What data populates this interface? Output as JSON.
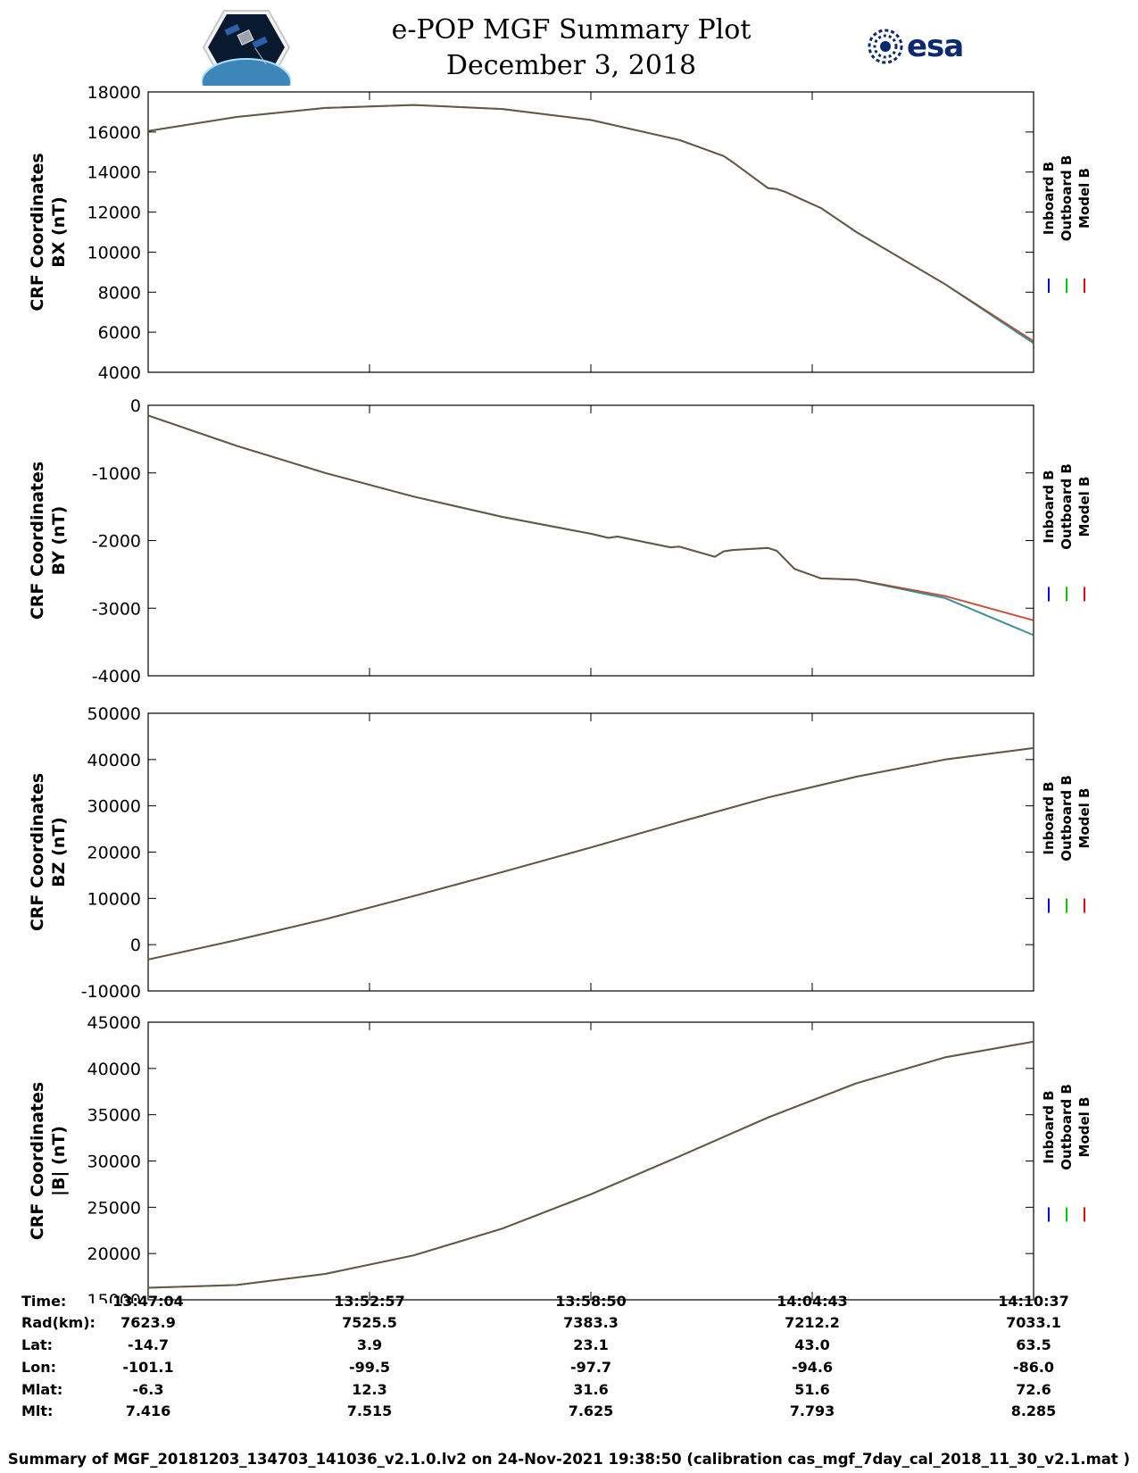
{
  "header": {
    "title_line1": "e-POP MGF Summary Plot",
    "title_line2": "December 3, 2018"
  },
  "chart_data": [
    {
      "type": "line",
      "ylabel_line1": "CRF Coordinates",
      "ylabel_line2": "BX (nT)",
      "ylim": [
        4000,
        18000
      ],
      "yticks": [
        4000,
        6000,
        8000,
        10000,
        12000,
        14000,
        16000,
        18000
      ],
      "x": [
        0,
        0.1,
        0.2,
        0.3,
        0.4,
        0.5,
        0.6,
        0.65,
        0.66,
        0.7,
        0.71,
        0.72,
        0.76,
        0.8,
        0.9,
        1.0
      ],
      "series": [
        {
          "name": "Inboard B",
          "color": "#0000ff",
          "values": [
            16050,
            16750,
            17200,
            17350,
            17150,
            16600,
            15600,
            14800,
            14500,
            13200,
            13150,
            13000,
            12200,
            11000,
            8400,
            5450
          ]
        },
        {
          "name": "Outboard B",
          "color": "#00cc00",
          "values": [
            16050,
            16750,
            17200,
            17350,
            17150,
            16600,
            15600,
            14800,
            14500,
            13200,
            13150,
            13000,
            12200,
            11000,
            8400,
            5450
          ]
        },
        {
          "name": "Model B",
          "color": "#ff0000",
          "values": [
            16050,
            16750,
            17200,
            17350,
            17150,
            16600,
            15600,
            14800,
            14500,
            13200,
            13150,
            13000,
            12200,
            11000,
            8400,
            5550
          ]
        }
      ]
    },
    {
      "type": "line",
      "ylabel_line1": "CRF Coordinates",
      "ylabel_line2": "BY (nT)",
      "ylim": [
        -4000,
        0
      ],
      "yticks": [
        -4000,
        -3000,
        -2000,
        -1000,
        0
      ],
      "x": [
        0,
        0.1,
        0.2,
        0.3,
        0.4,
        0.5,
        0.52,
        0.53,
        0.59,
        0.6,
        0.64,
        0.65,
        0.66,
        0.7,
        0.71,
        0.73,
        0.76,
        0.8,
        0.9,
        1.0
      ],
      "series": [
        {
          "name": "Inboard B",
          "color": "#0000ff",
          "values": [
            -150,
            -600,
            -1000,
            -1350,
            -1650,
            -1900,
            -1960,
            -1940,
            -2100,
            -2090,
            -2240,
            -2160,
            -2140,
            -2110,
            -2150,
            -2420,
            -2560,
            -2580,
            -2850,
            -3400
          ]
        },
        {
          "name": "Outboard B",
          "color": "#00cc00",
          "values": [
            -150,
            -600,
            -1000,
            -1350,
            -1650,
            -1900,
            -1960,
            -1940,
            -2100,
            -2090,
            -2240,
            -2160,
            -2140,
            -2110,
            -2150,
            -2420,
            -2560,
            -2580,
            -2850,
            -3400
          ]
        },
        {
          "name": "Model B",
          "color": "#ff0000",
          "values": [
            -150,
            -600,
            -1000,
            -1350,
            -1650,
            -1900,
            -1960,
            -1940,
            -2100,
            -2090,
            -2240,
            -2160,
            -2140,
            -2110,
            -2150,
            -2420,
            -2560,
            -2580,
            -2820,
            -3180
          ]
        }
      ]
    },
    {
      "type": "line",
      "ylabel_line1": "CRF Coordinates",
      "ylabel_line2": "BZ (nT)",
      "ylim": [
        -10000,
        50000
      ],
      "yticks": [
        -10000,
        0,
        10000,
        20000,
        30000,
        40000,
        50000
      ],
      "x": [
        0,
        0.1,
        0.2,
        0.3,
        0.4,
        0.5,
        0.6,
        0.7,
        0.8,
        0.9,
        1.0
      ],
      "series": [
        {
          "name": "Inboard B",
          "color": "#0000ff",
          "values": [
            -3200,
            1000,
            5500,
            10500,
            15700,
            21000,
            26500,
            31800,
            36300,
            40000,
            42500
          ]
        },
        {
          "name": "Outboard B",
          "color": "#00cc00",
          "values": [
            -3200,
            1000,
            5500,
            10500,
            15700,
            21000,
            26500,
            31800,
            36300,
            40000,
            42500
          ]
        },
        {
          "name": "Model B",
          "color": "#ff0000",
          "values": [
            -3200,
            1000,
            5500,
            10500,
            15700,
            21000,
            26500,
            31800,
            36300,
            40000,
            42500
          ]
        }
      ]
    },
    {
      "type": "line",
      "ylabel_line1": "CRF Coordinates",
      "ylabel_line2": "|B| (nT)",
      "ylim": [
        15000,
        45000
      ],
      "yticks": [
        15000,
        20000,
        25000,
        30000,
        35000,
        40000,
        45000
      ],
      "x": [
        0,
        0.1,
        0.2,
        0.3,
        0.4,
        0.5,
        0.6,
        0.7,
        0.8,
        0.9,
        1.0
      ],
      "series": [
        {
          "name": "Inboard B",
          "color": "#0000ff",
          "values": [
            16300,
            16600,
            17800,
            19800,
            22700,
            26400,
            30500,
            34700,
            38400,
            41200,
            42900
          ]
        },
        {
          "name": "Outboard B",
          "color": "#00cc00",
          "values": [
            16300,
            16600,
            17800,
            19800,
            22700,
            26400,
            30500,
            34700,
            38400,
            41200,
            42900
          ]
        },
        {
          "name": "Model B",
          "color": "#ff0000",
          "values": [
            16300,
            16600,
            17800,
            19800,
            22700,
            26400,
            30500,
            34700,
            38400,
            41200,
            42900
          ]
        }
      ]
    }
  ],
  "legend": {
    "labels": [
      "Inboard B",
      "Outboard B",
      "Model B"
    ],
    "colors": [
      "#0000ff",
      "#00cc00",
      "#ff0000"
    ]
  },
  "ephemeris": {
    "x_ticks": [
      0,
      0.25,
      0.5,
      0.75,
      1.0
    ],
    "rows": [
      {
        "label": "Time:",
        "values": [
          "13:47:04",
          "13:52:57",
          "13:58:50",
          "14:04:43",
          "14:10:37"
        ]
      },
      {
        "label": "Rad(km):",
        "values": [
          "7623.9",
          "7525.5",
          "7383.3",
          "7212.2",
          "7033.1"
        ]
      },
      {
        "label": "Lat:",
        "values": [
          "-14.7",
          "3.9",
          "23.1",
          "43.0",
          "63.5"
        ]
      },
      {
        "label": "Lon:",
        "values": [
          "-101.1",
          "-99.5",
          "-97.7",
          "-94.6",
          "-86.0"
        ]
      },
      {
        "label": "Mlat:",
        "values": [
          "-6.3",
          "12.3",
          "31.6",
          "51.6",
          "72.6"
        ]
      },
      {
        "label": "Mlt:",
        "values": [
          "7.416",
          "7.515",
          "7.625",
          "7.793",
          "8.285"
        ]
      }
    ]
  },
  "footer": {
    "text": "Summary of MGF_20181203_134703_141036_v2.1.0.lv2 on 24-Nov-2021 19:38:50 (calibration cas_mgf_7day_cal_2018_11_30_v2.1.mat )"
  },
  "logos": {
    "mission": "cassiope-satellite-logo",
    "agency": "esa",
    "mission_icon": "satellite-icon",
    "agency_icon": "esa-globe-icon"
  }
}
